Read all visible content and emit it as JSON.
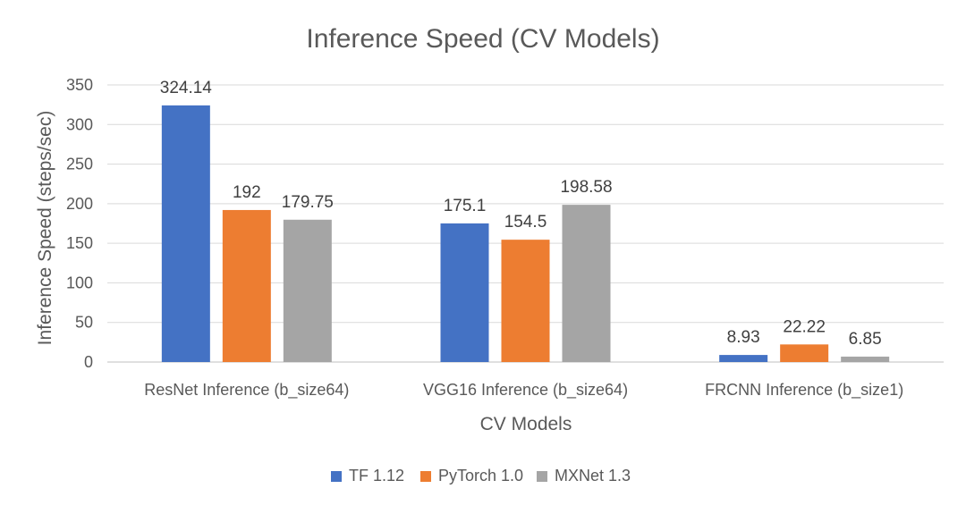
{
  "chart_data": {
    "type": "bar",
    "title": "Inference Speed (CV Models)",
    "xlabel": "CV Models",
    "ylabel": "Inference Speed (steps/sec)",
    "ylim": [
      0,
      350
    ],
    "yticks": [
      0,
      50,
      100,
      150,
      200,
      250,
      300,
      350
    ],
    "grid": true,
    "legend_position": "bottom",
    "categories": [
      "ResNet Inference (b_size64)",
      "VGG16 Inference (b_size64)",
      "FRCNN Inference (b_size1)"
    ],
    "series": [
      {
        "name": "TF 1.12",
        "color": "#4472c4",
        "values": [
          324.14,
          175.1,
          8.93
        ],
        "labels": [
          "324.14",
          "175.1",
          "8.93"
        ]
      },
      {
        "name": "PyTorch 1.0",
        "color": "#ed7d31",
        "values": [
          192,
          154.5,
          22.22
        ],
        "labels": [
          "192",
          "154.5",
          "22.22"
        ]
      },
      {
        "name": "MXNet 1.3",
        "color": "#a5a5a5",
        "values": [
          179.75,
          198.58,
          6.85
        ],
        "labels": [
          "179.75",
          "198.58",
          "6.85"
        ]
      }
    ]
  }
}
